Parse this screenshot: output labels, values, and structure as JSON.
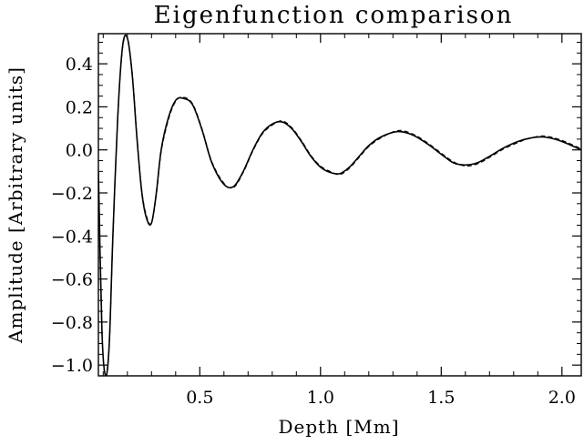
{
  "chart_data": {
    "type": "line",
    "title": "Eigenfunction comparison",
    "xlabel": "Depth [Mm]",
    "ylabel": "Amplitude [Arbitrary units]",
    "xlim": [
      0.08,
      2.08
    ],
    "ylim": [
      -1.05,
      0.54
    ],
    "xticks": [
      0.5,
      1.0,
      1.5,
      2.0
    ],
    "xtick_labels": [
      "0.5",
      "1.0",
      "1.5",
      "2.0"
    ],
    "yticks": [
      -1.0,
      -0.8,
      -0.6,
      -0.4,
      -0.2,
      0.0,
      0.2,
      0.4
    ],
    "ytick_labels": [
      "−1.0",
      "−0.8",
      "−0.6",
      "−0.4",
      "−0.2",
      "0.0",
      "0.2",
      "0.4"
    ],
    "grid": false,
    "series": [
      {
        "style": "solid",
        "color": "#000000",
        "x": [
          0.08,
          0.095,
          0.11,
          0.125,
          0.14,
          0.16,
          0.18,
          0.2,
          0.22,
          0.24,
          0.26,
          0.28,
          0.3,
          0.32,
          0.34,
          0.37,
          0.4,
          0.43,
          0.47,
          0.51,
          0.55,
          0.6,
          0.64,
          0.68,
          0.72,
          0.76,
          0.8,
          0.84,
          0.88,
          0.92,
          0.96,
          1.0,
          1.04,
          1.08,
          1.12,
          1.16,
          1.2,
          1.25,
          1.32,
          1.38,
          1.44,
          1.5,
          1.55,
          1.6,
          1.65,
          1.7,
          1.76,
          1.82,
          1.87,
          1.92,
          1.97,
          2.02,
          2.08
        ],
        "y": [
          -0.1,
          -0.85,
          -1.05,
          -0.9,
          -0.4,
          0.15,
          0.48,
          0.52,
          0.35,
          0.05,
          -0.2,
          -0.32,
          -0.34,
          -0.2,
          0.0,
          0.15,
          0.23,
          0.24,
          0.21,
          0.09,
          -0.06,
          -0.16,
          -0.17,
          -0.1,
          0.0,
          0.08,
          0.12,
          0.13,
          0.1,
          0.04,
          -0.03,
          -0.08,
          -0.105,
          -0.11,
          -0.08,
          -0.03,
          0.02,
          0.06,
          0.085,
          0.07,
          0.03,
          -0.02,
          -0.06,
          -0.07,
          -0.06,
          -0.03,
          0.01,
          0.04,
          0.055,
          0.06,
          0.05,
          0.03,
          0.0
        ]
      },
      {
        "style": "dashed",
        "color": "#000000",
        "x": [
          0.08,
          0.095,
          0.11,
          0.125,
          0.14,
          0.16,
          0.18,
          0.2,
          0.22,
          0.24,
          0.26,
          0.28,
          0.3,
          0.32,
          0.34,
          0.37,
          0.4,
          0.43,
          0.47,
          0.51,
          0.55,
          0.6,
          0.64,
          0.68,
          0.72,
          0.76,
          0.8,
          0.84,
          0.88,
          0.92,
          0.96,
          1.0,
          1.04,
          1.08,
          1.12,
          1.16,
          1.2,
          1.25,
          1.32,
          1.38,
          1.44,
          1.5,
          1.55,
          1.6,
          1.65,
          1.7,
          1.76,
          1.82,
          1.87,
          1.92,
          1.97,
          2.02,
          2.08
        ],
        "y": [
          -0.1,
          -0.86,
          -1.05,
          -0.91,
          -0.41,
          0.14,
          0.47,
          0.52,
          0.36,
          0.06,
          -0.19,
          -0.31,
          -0.34,
          -0.21,
          -0.01,
          0.14,
          0.225,
          0.245,
          0.215,
          0.095,
          -0.055,
          -0.155,
          -0.175,
          -0.105,
          -0.005,
          0.075,
          0.115,
          0.135,
          0.105,
          0.045,
          -0.025,
          -0.075,
          -0.1,
          -0.115,
          -0.085,
          -0.035,
          0.015,
          0.055,
          0.09,
          0.075,
          0.035,
          -0.015,
          -0.055,
          -0.075,
          -0.065,
          -0.035,
          0.005,
          0.035,
          0.055,
          0.065,
          0.055,
          0.035,
          0.005
        ]
      }
    ]
  }
}
